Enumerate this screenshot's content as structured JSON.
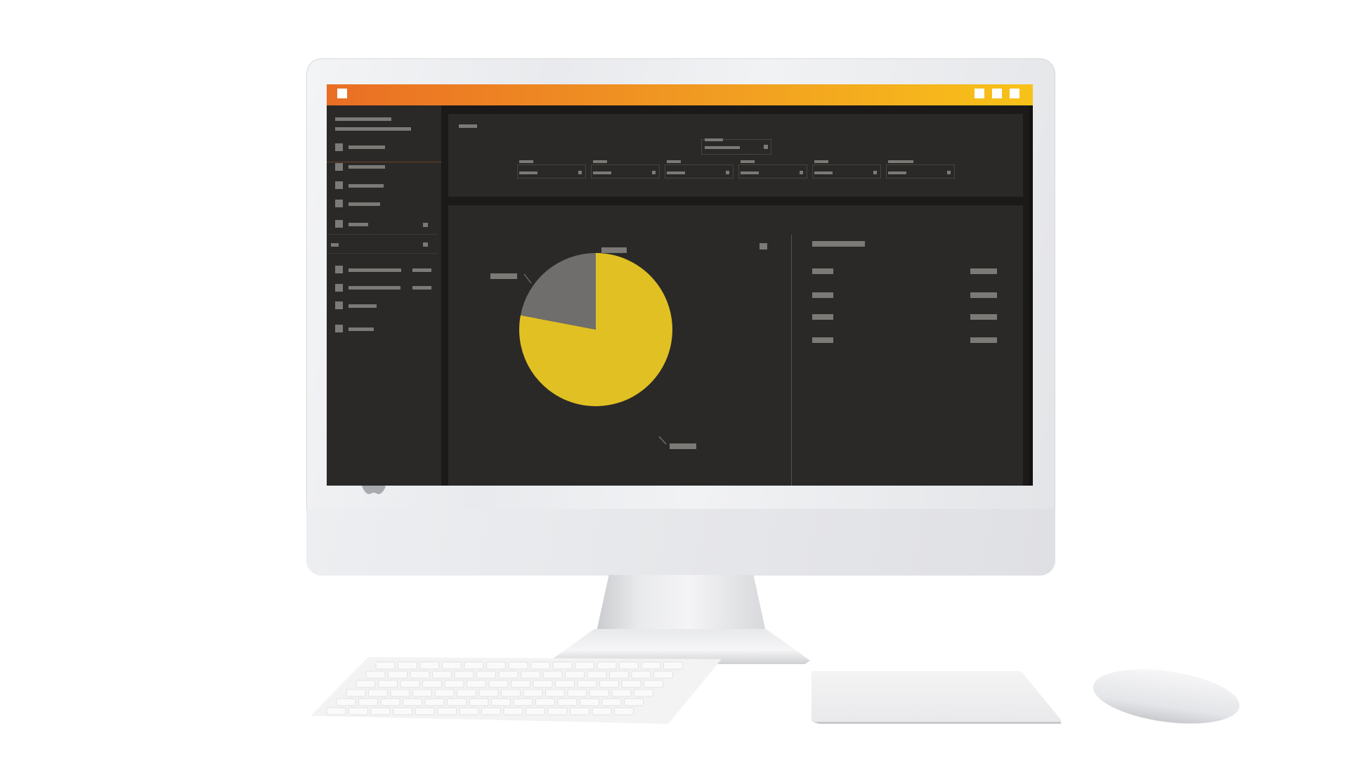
{
  "colors": {
    "accent_start": "#ea6e24",
    "accent_end": "#f8c219",
    "panel_bg": "#2a2927",
    "placeholder": "#7c7a77",
    "pie_primary": "#e1c023",
    "pie_secondary": "#6f6e6d"
  },
  "icons": {
    "app": "app-icon",
    "minimize": "window-minimize-icon",
    "maximize": "window-maximize-icon",
    "close": "window-close-icon",
    "brand": "apple-logo-icon"
  },
  "window": {
    "title": ""
  },
  "sidebar": {
    "header_lines": 2,
    "nav_items": 5,
    "section_items": 4
  },
  "filters": {
    "count": 6
  },
  "chart_data": {
    "type": "pie",
    "title": "",
    "slices": [
      {
        "label": "",
        "value": 78,
        "color": "#e1c023"
      },
      {
        "label": "",
        "value": 22,
        "color": "#6f6e6d"
      }
    ]
  },
  "legend": {
    "rows": 4
  }
}
